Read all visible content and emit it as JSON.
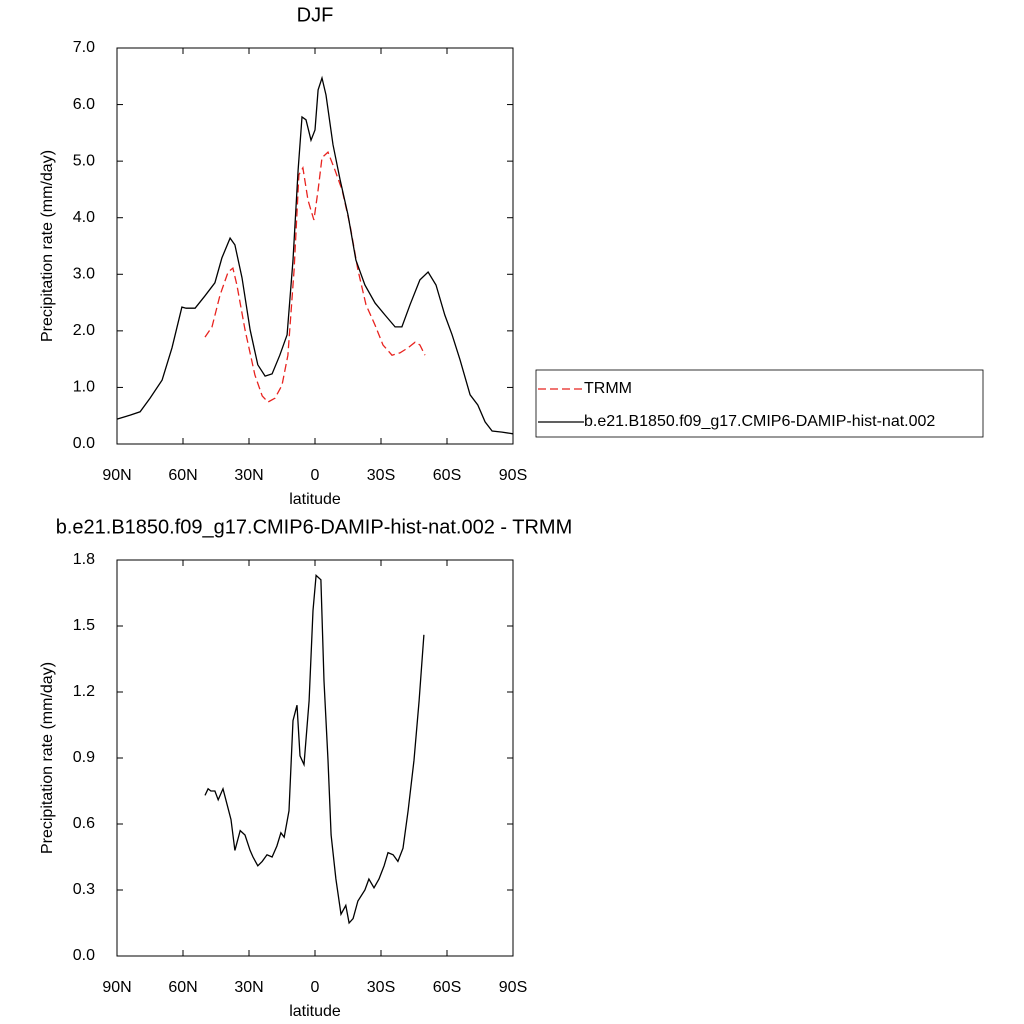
{
  "chart_data": [
    {
      "type": "line",
      "title": "DJF",
      "x_label": "latitude",
      "y_label": "Precipitation rate (mm/day)",
      "xlim": [
        90,
        -90
      ],
      "xticks": [
        {
          "value": 90,
          "label": "90N"
        },
        {
          "value": 60,
          "label": "60N"
        },
        {
          "value": 30,
          "label": "30N"
        },
        0,
        {
          "value": -30,
          "label": "30S"
        },
        {
          "value": -60,
          "label": "60S"
        },
        {
          "value": -90,
          "label": "90S"
        }
      ],
      "ylim": [
        0,
        7
      ],
      "yticks": [
        {
          "value": 0,
          "label": "0.0"
        },
        {
          "value": 1,
          "label": "1.0"
        },
        {
          "value": 2,
          "label": "2.0"
        },
        {
          "value": 3,
          "label": "3.0"
        },
        {
          "value": 4,
          "label": "4.0"
        },
        {
          "value": 5,
          "label": "5.0"
        },
        {
          "value": 6,
          "label": "6.0"
        },
        {
          "value": 7,
          "label": "7.0"
        }
      ],
      "legend": "right",
      "series": [
        {
          "name": "TRMM",
          "color": "#e8231f",
          "dashed": true,
          "x": [
            50,
            46.8,
            43.2,
            39.5,
            37.3,
            35.5,
            31.8,
            27.3,
            24,
            21.4,
            18.2,
            15,
            12.3,
            9.5,
            7.3,
            5.5,
            3.2,
            0.5,
            -1.4,
            -3.2,
            -5.9,
            -9.1,
            -12.3,
            -15.9,
            -19.5,
            -23.2,
            -27.3,
            -30.9,
            -35,
            -38.6,
            -42.3,
            -45.5,
            -47.7,
            -50
          ],
          "values": [
            1.89,
            2.07,
            2.63,
            3.04,
            3.11,
            2.81,
            2.02,
            1.22,
            0.85,
            0.74,
            0.81,
            1.04,
            1.57,
            3.08,
            4.76,
            4.88,
            4.31,
            3.96,
            4.49,
            5.06,
            5.16,
            4.84,
            4.49,
            3.87,
            3.08,
            2.46,
            2.1,
            1.75,
            1.57,
            1.61,
            1.7,
            1.8,
            1.75,
            1.57
          ]
        },
        {
          "name": "b.e21.B1850.f09_g17.CMIP6-DAMIP-hist-nat.002",
          "color": "#000000",
          "dashed": false,
          "x": [
            90,
            84,
            79.5,
            75,
            69.5,
            65,
            60.5,
            58.6,
            54.5,
            50,
            45.5,
            42.3,
            38.6,
            36.4,
            33.2,
            29.5,
            26,
            22.7,
            19.5,
            16,
            12.7,
            10,
            7.7,
            5.9,
            4.1,
            1.8,
            0,
            -1.4,
            -3.2,
            -5,
            -8.2,
            -11.4,
            -15,
            -18.6,
            -22.7,
            -27.3,
            -31.8,
            -36.4,
            -39.5,
            -43.2,
            -47.7,
            -51.4,
            -55,
            -59,
            -62.3,
            -65.9,
            -70.5,
            -74,
            -77.3,
            -80.5,
            -85,
            -90
          ],
          "values": [
            0.44,
            0.51,
            0.57,
            0.81,
            1.13,
            1.7,
            2.42,
            2.4,
            2.4,
            2.62,
            2.85,
            3.29,
            3.64,
            3.52,
            2.94,
            2.02,
            1.4,
            1.2,
            1.24,
            1.57,
            1.93,
            3.25,
            4.84,
            5.78,
            5.73,
            5.37,
            5.55,
            6.26,
            6.47,
            6.17,
            5.29,
            4.67,
            4.05,
            3.25,
            2.81,
            2.49,
            2.28,
            2.07,
            2.07,
            2.46,
            2.9,
            3.04,
            2.81,
            2.28,
            1.93,
            1.49,
            0.87,
            0.69,
            0.39,
            0.23,
            0.21,
            0.18
          ]
        }
      ]
    },
    {
      "type": "line",
      "title": "b.e21.B1850.f09_g17.CMIP6-DAMIP-hist-nat.002 - TRMM",
      "x_label": "latitude",
      "y_label": "Precipitation rate (mm/day)",
      "xlim": [
        90,
        -90
      ],
      "xticks": [
        {
          "value": 90,
          "label": "90N"
        },
        {
          "value": 60,
          "label": "60N"
        },
        {
          "value": 30,
          "label": "30N"
        },
        0,
        {
          "value": -30,
          "label": "30S"
        },
        {
          "value": -60,
          "label": "60S"
        },
        {
          "value": -90,
          "label": "90S"
        }
      ],
      "ylim": [
        0,
        1.8
      ],
      "yticks": [
        {
          "value": 0,
          "label": "0.0"
        },
        {
          "value": 0.3,
          "label": "0.3"
        },
        {
          "value": 0.6,
          "label": "0.6"
        },
        {
          "value": 0.9,
          "label": "0.9"
        },
        {
          "value": 1.2,
          "label": "1.2"
        },
        {
          "value": 1.5,
          "label": "1.5"
        },
        {
          "value": 1.8,
          "label": "1.8"
        }
      ],
      "series": [
        {
          "color": "#000000",
          "dashed": false,
          "x": [
            50,
            48.6,
            47.3,
            45.5,
            44,
            41.8,
            40,
            38.2,
            36.4,
            34,
            31.8,
            29.5,
            28.2,
            26,
            24,
            21.8,
            19.5,
            17.3,
            15.5,
            14,
            11.8,
            10,
            8.2,
            6.8,
            5,
            2.7,
            0.9,
            -0.5,
            -2.7,
            -4.1,
            -5.9,
            -7.3,
            -9.5,
            -11.8,
            -14,
            -15.5,
            -17.3,
            -19.5,
            -22.7,
            -24.5,
            -26.8,
            -29.1,
            -31.4,
            -33.2,
            -35.5,
            -37.7,
            -40,
            -42.3,
            -45,
            -47.3,
            -49.5
          ],
          "values": [
            0.73,
            0.76,
            0.75,
            0.75,
            0.71,
            0.76,
            0.69,
            0.62,
            0.48,
            0.57,
            0.55,
            0.48,
            0.45,
            0.41,
            0.43,
            0.46,
            0.45,
            0.5,
            0.56,
            0.54,
            0.66,
            1.07,
            1.14,
            0.91,
            0.87,
            1.16,
            1.57,
            1.73,
            1.71,
            1.25,
            0.89,
            0.55,
            0.35,
            0.19,
            0.23,
            0.15,
            0.17,
            0.25,
            0.3,
            0.35,
            0.31,
            0.35,
            0.41,
            0.47,
            0.46,
            0.43,
            0.49,
            0.66,
            0.89,
            1.16,
            1.46
          ]
        }
      ]
    }
  ]
}
